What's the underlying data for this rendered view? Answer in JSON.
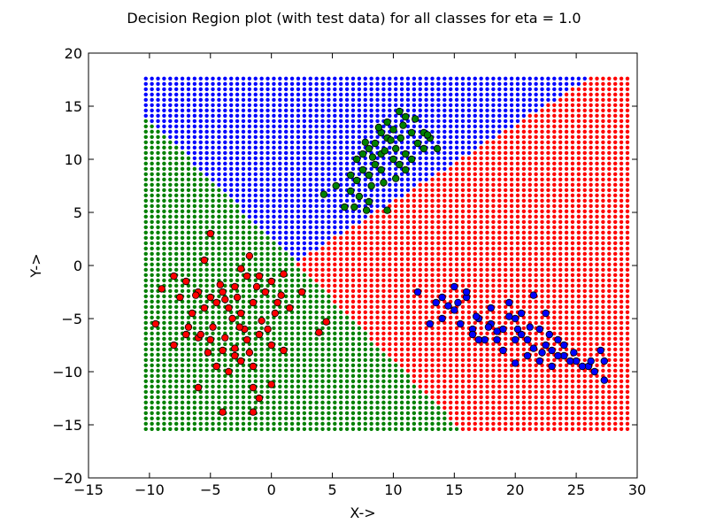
{
  "chart_data": {
    "type": "scatter",
    "title": "Decision Region plot (with test data) for all classes for eta = 1.0",
    "xlabel": "X->",
    "ylabel": "Y->",
    "xlim": [
      -15,
      30
    ],
    "ylim": [
      -20,
      20
    ],
    "xticks": [
      -15,
      -10,
      -5,
      0,
      5,
      10,
      15,
      20,
      25,
      30
    ],
    "yticks": [
      -20,
      -15,
      -10,
      -5,
      0,
      5,
      10,
      15,
      20
    ],
    "xtick_labels": [
      "−15",
      "−10",
      "−5",
      "0",
      "5",
      "10",
      "15",
      "20",
      "25",
      "30"
    ],
    "ytick_labels": [
      "−20",
      "−15",
      "−10",
      "−5",
      "0",
      "5",
      "10",
      "15",
      "20"
    ],
    "grid": false,
    "colors": {
      "class_blue": "#0000ff",
      "class_green": "#008000",
      "class_red": "#ff0000"
    },
    "region_grid": {
      "x_range": [
        -10.3,
        29.3
      ],
      "y_range": [
        -15.4,
        17.6
      ],
      "step": 0.5,
      "boundaries": {
        "blue_green": {
          "from": [
            -10.3,
            14.0
          ],
          "to": [
            2.0,
            0.3
          ]
        },
        "blue_red": {
          "from": [
            2.0,
            0.3
          ],
          "to": [
            26.0,
            17.6
          ]
        },
        "green_red": {
          "from": [
            2.0,
            0.3
          ],
          "to": [
            15.5,
            -15.4
          ]
        }
      }
    },
    "series": [
      {
        "color": "green",
        "points": [
          [
            10.0,
            12.8
          ],
          [
            10.5,
            14.5
          ],
          [
            11.0,
            14.0
          ],
          [
            9.5,
            12.0
          ],
          [
            8.5,
            11.5
          ],
          [
            9.0,
            12.5
          ],
          [
            10.2,
            11.0
          ],
          [
            11.5,
            12.5
          ],
          [
            12.0,
            11.5
          ],
          [
            11.0,
            10.5
          ],
          [
            10.0,
            10.0
          ],
          [
            9.0,
            10.5
          ],
          [
            8.0,
            11.0
          ],
          [
            8.5,
            9.5
          ],
          [
            7.5,
            9.0
          ],
          [
            7.0,
            10.0
          ],
          [
            6.5,
            8.5
          ],
          [
            7.0,
            8.0
          ],
          [
            8.0,
            8.5
          ],
          [
            9.0,
            9.0
          ],
          [
            10.5,
            9.5
          ],
          [
            11.5,
            10.0
          ],
          [
            12.5,
            11.0
          ],
          [
            13.0,
            12.0
          ],
          [
            12.5,
            12.5
          ],
          [
            9.5,
            13.5
          ],
          [
            8.8,
            13.0
          ],
          [
            10.8,
            13.2
          ],
          [
            11.8,
            13.8
          ],
          [
            7.5,
            10.5
          ],
          [
            8.2,
            7.5
          ],
          [
            9.2,
            7.8
          ],
          [
            6.5,
            7.0
          ],
          [
            7.2,
            6.5
          ],
          [
            8.0,
            6.0
          ],
          [
            6.8,
            5.5
          ],
          [
            7.8,
            5.2
          ],
          [
            6.0,
            5.5
          ],
          [
            4.3,
            6.7
          ],
          [
            5.3,
            7.5
          ],
          [
            9.5,
            5.2
          ],
          [
            10.2,
            8.2
          ],
          [
            11.0,
            9.0
          ],
          [
            13.6,
            11.0
          ],
          [
            12.8,
            12.3
          ],
          [
            9.8,
            11.8
          ],
          [
            10.6,
            12.0
          ],
          [
            8.3,
            10.2
          ],
          [
            7.7,
            11.6
          ],
          [
            9.3,
            10.8
          ]
        ]
      },
      {
        "color": "red",
        "points": [
          [
            -5.0,
            3.0
          ],
          [
            -5.5,
            0.5
          ],
          [
            -2.5,
            -0.3
          ],
          [
            -1.8,
            0.9
          ],
          [
            -1.0,
            -1.0
          ],
          [
            0.0,
            -1.5
          ],
          [
            1.0,
            -0.8
          ],
          [
            -3.0,
            -2.0
          ],
          [
            -4.0,
            -2.5
          ],
          [
            -5.0,
            -3.0
          ],
          [
            -6.0,
            -2.5
          ],
          [
            -7.0,
            -1.5
          ],
          [
            -8.0,
            -1.0
          ],
          [
            -9.0,
            -2.2
          ],
          [
            -7.5,
            -3.0
          ],
          [
            -6.5,
            -4.5
          ],
          [
            -5.5,
            -4.0
          ],
          [
            -4.5,
            -3.5
          ],
          [
            -3.5,
            -4.0
          ],
          [
            -2.5,
            -4.5
          ],
          [
            -1.5,
            -3.5
          ],
          [
            -0.5,
            -2.5
          ],
          [
            0.5,
            -3.5
          ],
          [
            1.5,
            -4.0
          ],
          [
            2.5,
            -2.5
          ],
          [
            -9.5,
            -5.5
          ],
          [
            -8.0,
            -7.5
          ],
          [
            -7.0,
            -6.5
          ],
          [
            -6.0,
            -6.8
          ],
          [
            -5.0,
            -7.0
          ],
          [
            -4.0,
            -8.0
          ],
          [
            -3.0,
            -8.5
          ],
          [
            -2.0,
            -7.0
          ],
          [
            -1.0,
            -6.5
          ],
          [
            0.0,
            -7.5
          ],
          [
            1.0,
            -8.0
          ],
          [
            -4.5,
            -9.5
          ],
          [
            -3.5,
            -10.0
          ],
          [
            -2.5,
            -9.0
          ],
          [
            -1.5,
            -9.5
          ],
          [
            -6.0,
            -11.5
          ],
          [
            -4.0,
            -13.8
          ],
          [
            -1.5,
            -13.8
          ],
          [
            -1.0,
            -12.5
          ],
          [
            0.0,
            -11.2
          ],
          [
            -1.5,
            -11.5
          ],
          [
            4.5,
            -5.3
          ],
          [
            3.9,
            -6.3
          ],
          [
            -4.8,
            -5.8
          ],
          [
            -3.2,
            -5.0
          ],
          [
            -2.2,
            -6.0
          ],
          [
            -0.8,
            -5.2
          ],
          [
            -5.2,
            -8.2
          ],
          [
            -6.8,
            -5.8
          ],
          [
            -3.8,
            -6.8
          ],
          [
            -2.8,
            -3.0
          ],
          [
            -1.2,
            -2.0
          ],
          [
            0.3,
            -4.5
          ],
          [
            -4.2,
            -1.8
          ],
          [
            -5.8,
            -6.5
          ],
          [
            -3.0,
            -7.8
          ],
          [
            -1.8,
            -8.2
          ],
          [
            -0.3,
            -6.0
          ],
          [
            -2.0,
            -1.0
          ],
          [
            -3.8,
            -3.2
          ],
          [
            -6.2,
            -2.8
          ],
          [
            0.8,
            -2.8
          ],
          [
            -2.6,
            -5.8
          ]
        ]
      },
      {
        "color": "blue",
        "points": [
          [
            12.0,
            -2.5
          ],
          [
            13.5,
            -3.5
          ],
          [
            14.5,
            -3.8
          ],
          [
            15.0,
            -4.2
          ],
          [
            16.0,
            -3.0
          ],
          [
            15.5,
            -5.5
          ],
          [
            16.5,
            -6.0
          ],
          [
            17.0,
            -5.0
          ],
          [
            18.0,
            -5.5
          ],
          [
            19.0,
            -6.0
          ],
          [
            20.0,
            -5.0
          ],
          [
            20.5,
            -6.5
          ],
          [
            21.0,
            -7.0
          ],
          [
            22.0,
            -6.0
          ],
          [
            22.5,
            -7.5
          ],
          [
            23.0,
            -8.0
          ],
          [
            24.0,
            -8.5
          ],
          [
            25.0,
            -9.0
          ],
          [
            26.0,
            -9.5
          ],
          [
            27.0,
            -8.0
          ],
          [
            27.3,
            -10.8
          ],
          [
            27.3,
            -9.0
          ],
          [
            26.5,
            -10.0
          ],
          [
            25.5,
            -9.5
          ],
          [
            24.5,
            -9.0
          ],
          [
            23.5,
            -8.5
          ],
          [
            22.0,
            -9.0
          ],
          [
            21.0,
            -8.5
          ],
          [
            20.0,
            -9.2
          ],
          [
            19.0,
            -8.0
          ],
          [
            18.5,
            -7.0
          ],
          [
            17.5,
            -7.0
          ],
          [
            16.5,
            -6.5
          ],
          [
            15.0,
            -2.0
          ],
          [
            16.0,
            -2.5
          ],
          [
            14.0,
            -3.0
          ],
          [
            13.0,
            -5.5
          ],
          [
            14.0,
            -5.0
          ],
          [
            19.5,
            -3.5
          ],
          [
            20.5,
            -4.5
          ],
          [
            21.5,
            -2.8
          ],
          [
            22.5,
            -4.5
          ],
          [
            18.0,
            -4.0
          ],
          [
            17.0,
            -7.0
          ],
          [
            23.5,
            -7.0
          ],
          [
            24.0,
            -7.5
          ],
          [
            20.0,
            -7.0
          ],
          [
            21.5,
            -7.8
          ],
          [
            19.5,
            -4.8
          ],
          [
            18.5,
            -6.2
          ],
          [
            15.3,
            -3.5
          ],
          [
            16.8,
            -4.8
          ],
          [
            22.8,
            -6.5
          ],
          [
            24.8,
            -8.2
          ],
          [
            26.2,
            -9.0
          ],
          [
            17.8,
            -5.8
          ],
          [
            21.2,
            -5.8
          ],
          [
            20.2,
            -6.0
          ],
          [
            23.0,
            -9.5
          ],
          [
            22.2,
            -8.2
          ]
        ]
      }
    ]
  }
}
